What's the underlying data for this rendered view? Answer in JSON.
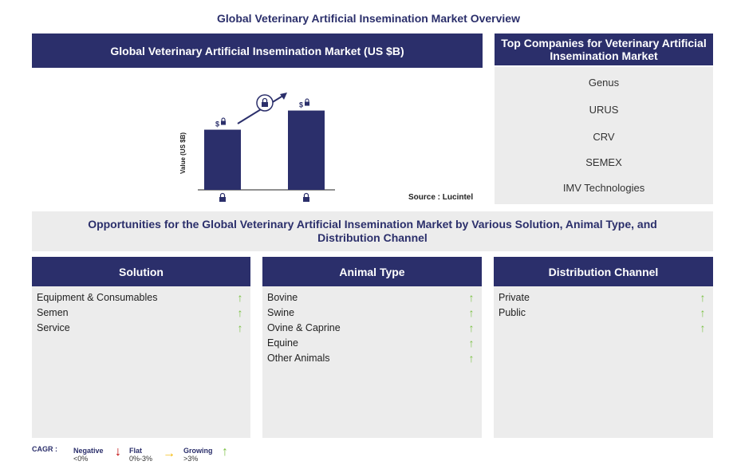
{
  "page_title": "Global Veterinary Artificial Insemination Market Overview",
  "market_header": "Global Veterinary Artificial Insemination Market (US $B)",
  "chart_data": {
    "type": "bar",
    "categories": [
      "",
      ""
    ],
    "values": [
      88,
      116
    ],
    "ylabel": "Value (US $B)",
    "value_labels": [
      "$",
      "$"
    ],
    "source": "Source : Lucintel",
    "ylim": [
      0,
      140
    ]
  },
  "companies": {
    "header": "Top Companies for Veterinary Artificial Insemination Market",
    "items": [
      "Genus",
      "URUS",
      "CRV",
      "SEMEX",
      "IMV Technologies"
    ]
  },
  "opportunities_title": "Opportunities for the Global Veterinary Artificial Insemination Market by Various Solution, Animal Type, and Distribution Channel",
  "columns": [
    {
      "title": "Solution",
      "items": [
        "Equipment & Consumables",
        "Semen",
        "Service"
      ]
    },
    {
      "title": "Animal Type",
      "items": [
        "Bovine",
        "Swine",
        "Ovine & Caprine",
        "Equine",
        "Other Animals"
      ]
    },
    {
      "title": "Distribution Channel",
      "items": [
        "Private",
        "Public",
        ""
      ]
    }
  ],
  "legend": {
    "cagr_label": "CAGR :",
    "negative": "Negative",
    "negative_range": "<0%",
    "flat": "Flat",
    "flat_range": "0%-3%",
    "growing": "Growing",
    "growing_range": ">3%",
    "negative_color": "#c00000",
    "flat_color": "#f5b800",
    "growing_color": "#7ac142"
  }
}
